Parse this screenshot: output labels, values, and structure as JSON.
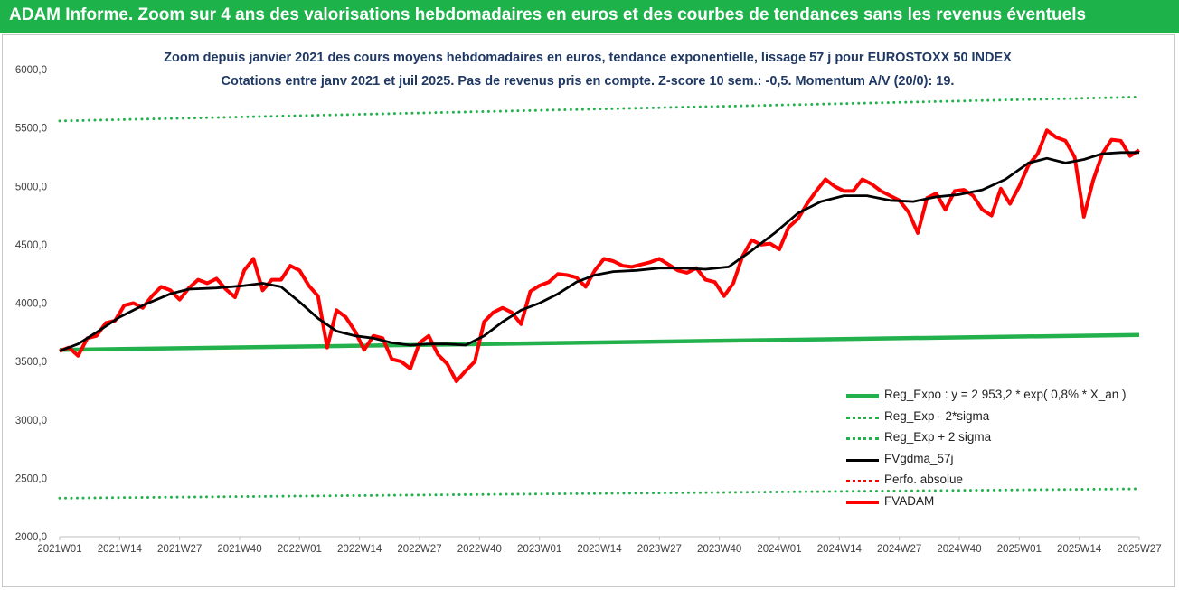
{
  "banner": {
    "title": "ADAM Informe. Zoom sur 4 ans des valorisations hebdomadaires en euros et des courbes de tendances sans les revenus éventuels"
  },
  "chart_data": {
    "type": "line",
    "title": "Zoom depuis janvier 2021 des cours moyens hebdomadaires en euros, tendance exponentielle, lissage 57 j pour EUROSTOXX 50 INDEX",
    "subtitle": "Cotations entre janv 2021 et juil 2025. Pas de revenus pris en compte. Z-score 10 sem.: -0,5. Momentum A/V (20/0): 19.",
    "ylim": [
      2000,
      6000
    ],
    "yticks": [
      "2000,0",
      "2500,0",
      "3000,0",
      "3500,0",
      "4000,0",
      "4500,0",
      "5000,0",
      "5500,0",
      "6000,0"
    ],
    "xlim": [
      0,
      234
    ],
    "xticks": [
      {
        "label": "2021W01",
        "x": 0
      },
      {
        "label": "2021W14",
        "x": 13
      },
      {
        "label": "2021W27",
        "x": 26
      },
      {
        "label": "2021W40",
        "x": 39
      },
      {
        "label": "2022W01",
        "x": 52
      },
      {
        "label": "2022W14",
        "x": 65
      },
      {
        "label": "2022W27",
        "x": 78
      },
      {
        "label": "2022W40",
        "x": 91
      },
      {
        "label": "2023W01",
        "x": 104
      },
      {
        "label": "2023W14",
        "x": 117
      },
      {
        "label": "2023W27",
        "x": 130
      },
      {
        "label": "2023W40",
        "x": 143
      },
      {
        "label": "2024W01",
        "x": 156
      },
      {
        "label": "2024W14",
        "x": 169
      },
      {
        "label": "2024W27",
        "x": 182
      },
      {
        "label": "2024W40",
        "x": 195
      },
      {
        "label": "2025W01",
        "x": 208
      },
      {
        "label": "2025W14",
        "x": 221
      },
      {
        "label": "2025W27",
        "x": 234
      }
    ],
    "grid": false,
    "legend_position": "bottom-right",
    "series": [
      {
        "name": "Reg_Expo : y = 2 953,2 * exp( 0,8% *  X_an )",
        "style": "solid",
        "color": "#22b14c",
        "x": [
          0,
          234
        ],
        "values": [
          3600,
          3728
        ]
      },
      {
        "name": "Reg_Exp - 2*sigma",
        "style": "dotted",
        "color": "#22b14c",
        "x": [
          0,
          234
        ],
        "values": [
          2330,
          2410
        ]
      },
      {
        "name": "Reg_Exp + 2 sigma",
        "style": "dotted",
        "color": "#22b14c",
        "x": [
          0,
          234
        ],
        "values": [
          5560,
          5765
        ]
      },
      {
        "name": "FVgdma_57j",
        "style": "solid",
        "color": "#000000",
        "x": [
          0,
          4,
          8,
          13,
          18,
          24,
          28,
          34,
          40,
          44,
          48,
          52,
          56,
          60,
          64,
          68,
          72,
          76,
          80,
          84,
          88,
          92,
          96,
          100,
          104,
          108,
          112,
          116,
          120,
          125,
          130,
          135,
          140,
          145,
          150,
          155,
          160,
          165,
          170,
          175,
          180,
          185,
          190,
          195,
          200,
          205,
          210,
          214,
          218,
          222,
          226,
          230,
          234
        ],
        "values": [
          3590,
          3650,
          3750,
          3880,
          3980,
          4080,
          4120,
          4130,
          4150,
          4170,
          4140,
          4010,
          3870,
          3760,
          3720,
          3700,
          3660,
          3640,
          3650,
          3650,
          3640,
          3720,
          3840,
          3940,
          4000,
          4080,
          4180,
          4240,
          4270,
          4280,
          4300,
          4300,
          4290,
          4310,
          4450,
          4600,
          4770,
          4870,
          4920,
          4920,
          4880,
          4870,
          4910,
          4930,
          4970,
          5060,
          5200,
          5240,
          5200,
          5230,
          5280,
          5290,
          5290
        ]
      },
      {
        "name": "Perfo. absolue",
        "style": "dotted",
        "color": "#ff0000",
        "x": [],
        "values": []
      },
      {
        "name": "FVADAM",
        "style": "solid",
        "color": "#ff0000",
        "x": [
          0,
          2,
          4,
          6,
          8,
          10,
          12,
          14,
          16,
          18,
          20,
          22,
          24,
          26,
          28,
          30,
          32,
          34,
          36,
          38,
          40,
          42,
          44,
          46,
          48,
          50,
          52,
          54,
          56,
          58,
          60,
          62,
          64,
          66,
          68,
          70,
          72,
          74,
          76,
          78,
          80,
          82,
          84,
          86,
          88,
          90,
          92,
          94,
          96,
          98,
          100,
          102,
          104,
          106,
          108,
          110,
          112,
          114,
          116,
          118,
          120,
          122,
          124,
          126,
          128,
          130,
          132,
          134,
          136,
          138,
          140,
          142,
          144,
          146,
          148,
          150,
          152,
          154,
          156,
          158,
          160,
          162,
          164,
          166,
          168,
          170,
          172,
          174,
          176,
          178,
          180,
          182,
          184,
          186,
          188,
          190,
          192,
          194,
          196,
          198,
          200,
          202,
          204,
          206,
          208,
          210,
          212,
          214,
          216,
          218,
          220,
          222,
          224,
          226,
          228,
          230,
          232,
          234
        ],
        "values": [
          3590,
          3620,
          3550,
          3700,
          3720,
          3830,
          3850,
          3980,
          4000,
          3960,
          4060,
          4140,
          4110,
          4030,
          4130,
          4200,
          4170,
          4210,
          4120,
          4050,
          4280,
          4380,
          4110,
          4200,
          4200,
          4320,
          4280,
          4150,
          4060,
          3620,
          3940,
          3880,
          3760,
          3600,
          3720,
          3700,
          3520,
          3500,
          3440,
          3660,
          3720,
          3560,
          3480,
          3330,
          3420,
          3500,
          3840,
          3920,
          3960,
          3920,
          3820,
          4100,
          4150,
          4180,
          4250,
          4240,
          4220,
          4140,
          4280,
          4380,
          4360,
          4320,
          4310,
          4330,
          4350,
          4380,
          4330,
          4280,
          4260,
          4300,
          4200,
          4180,
          4060,
          4170,
          4400,
          4540,
          4500,
          4510,
          4460,
          4650,
          4720,
          4850,
          4960,
          5060,
          5000,
          4960,
          4960,
          5060,
          5020,
          4960,
          4920,
          4880,
          4780,
          4600,
          4900,
          4940,
          4800,
          4960,
          4970,
          4920,
          4800,
          4750,
          4980,
          4850,
          5000,
          5180,
          5280,
          5480,
          5420,
          5390,
          5250,
          4740,
          5050,
          5280,
          5400,
          5390,
          5260,
          5310
        ]
      }
    ]
  }
}
